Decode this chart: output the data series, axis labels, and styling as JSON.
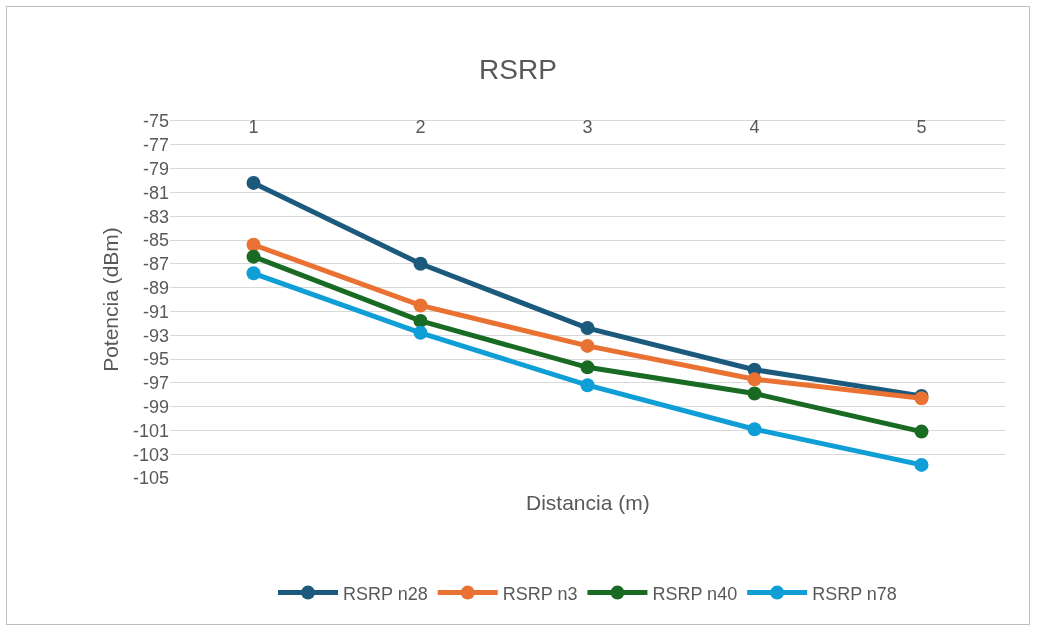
{
  "chart_data": {
    "type": "line",
    "title": "RSRP",
    "xlabel": "Distancia (m)",
    "ylabel": "Potencia (dBm)",
    "categories": [
      "1",
      "2",
      "3",
      "4",
      "5"
    ],
    "series": [
      {
        "name": "RSRP n28",
        "color": "#1c5a7d",
        "values": [
          -80.2,
          -87.0,
          -92.4,
          -95.9,
          -98.1
        ]
      },
      {
        "name": "RSRP n3",
        "color": "#e97132",
        "values": [
          -85.4,
          -90.5,
          -93.9,
          -96.7,
          -98.3
        ]
      },
      {
        "name": "RSRP n40",
        "color": "#196b24",
        "values": [
          -86.4,
          -91.8,
          -95.7,
          -97.9,
          -101.1
        ]
      },
      {
        "name": "RSRP n78",
        "color": "#0f9ed5",
        "values": [
          -87.8,
          -92.8,
          -97.2,
          -100.9,
          -103.9
        ]
      }
    ],
    "ylim": [
      -105,
      -75
    ],
    "yticks": [
      -75,
      -77,
      -79,
      -81,
      -83,
      -85,
      -87,
      -89,
      -91,
      -93,
      -95,
      -97,
      -99,
      -101,
      -103,
      -105
    ],
    "grid": "y",
    "legend": "bottom",
    "marker": "circle",
    "line_style": "solid"
  }
}
